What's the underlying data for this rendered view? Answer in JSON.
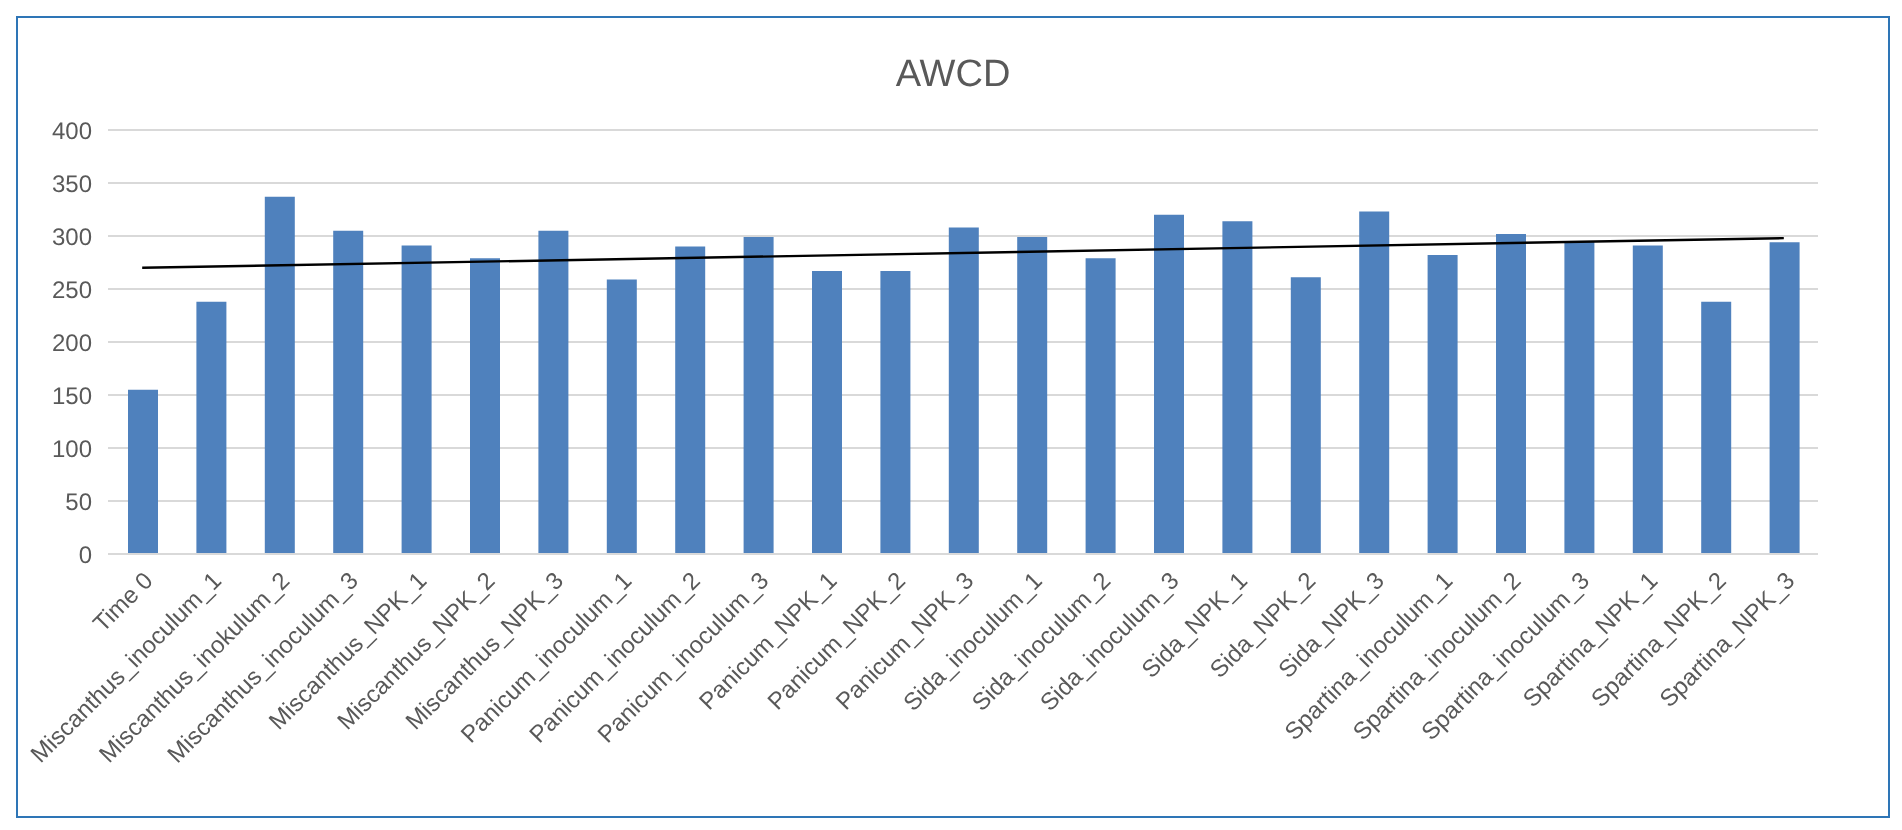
{
  "chart_data": {
    "type": "bar",
    "title": "AWCD",
    "categories": [
      "Time 0",
      "Miscanthus_inoculum_1",
      "Miscanthus_inokulum_2",
      "Miscanthus_inoculum_3",
      "Miscanthus_NPK_1",
      "Miscanthus_NPK_2",
      "Miscanthus_NPK_3",
      "Panicum_inoculum_1",
      "Panicum_inoculum_2",
      "Panicum_inoculum_3",
      "Panicum_NPK_1",
      "Panicum_NPK_2",
      "Panicum_NPK_3",
      "Sida_inoculum_1",
      "Sida_inoculum_2",
      "Sida_inoculum_3",
      "Sida_NPK_1",
      "Sida_NPK_2",
      "Sida_NPK_3",
      "Spartina_inoculum_1",
      "Spartina_inoculum_2",
      "Spartina_inoculum_3",
      "Spartina_NPK_1",
      "Spartina_NPK_2",
      "Spartina_NPK_3"
    ],
    "series": [
      {
        "color": "#4f81bd",
        "values": [
          155,
          238,
          337,
          305,
          291,
          279,
          305,
          259,
          290,
          299,
          267,
          267,
          308,
          299,
          279,
          320,
          314,
          261,
          323,
          282,
          302,
          295,
          291,
          238,
          294
        ]
      },
      {
        "type": "line",
        "color": "#000000",
        "x": [
          "Time 0",
          "Spartina_NPK_3"
        ],
        "values": [
          270,
          298
        ]
      }
    ],
    "ylim": [
      0,
      400
    ],
    "yticks": [
      0,
      50,
      100,
      150,
      200,
      250,
      300,
      350,
      400
    ],
    "grid": "y"
  }
}
